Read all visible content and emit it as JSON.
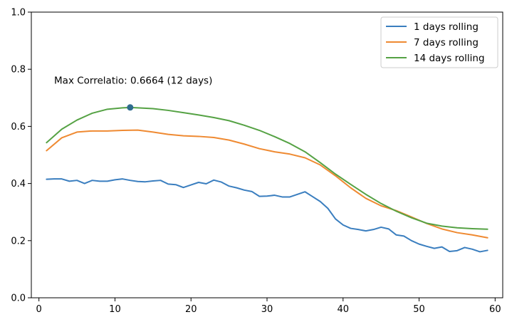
{
  "chart_data": {
    "type": "line",
    "xlim": [
      -1,
      61
    ],
    "ylim": [
      0.0,
      1.0
    ],
    "xticks": [
      0,
      10,
      20,
      30,
      40,
      50,
      60
    ],
    "yticks": [
      0.0,
      0.2,
      0.4,
      0.6,
      0.8,
      1.0
    ],
    "ytick_labels": [
      "0.0",
      "0.2",
      "0.4",
      "0.6",
      "0.8",
      "1.0"
    ],
    "legend_position": "top-right",
    "grid": false,
    "series": [
      {
        "name": "1 days rolling",
        "color": "#3a7ebf",
        "x": [
          1,
          2,
          3,
          4,
          5,
          6,
          7,
          8,
          9,
          10,
          11,
          12,
          13,
          14,
          15,
          16,
          17,
          18,
          19,
          20,
          21,
          22,
          23,
          24,
          25,
          26,
          27,
          28,
          29,
          30,
          31,
          32,
          33,
          34,
          35,
          36,
          37,
          38,
          39,
          40,
          41,
          42,
          43,
          44,
          45,
          46,
          47,
          48,
          49,
          50,
          51,
          52,
          53,
          54,
          55,
          56,
          57,
          58,
          59
        ],
        "values": [
          0.415,
          0.416,
          0.416,
          0.408,
          0.411,
          0.4,
          0.411,
          0.408,
          0.408,
          0.413,
          0.416,
          0.411,
          0.407,
          0.406,
          0.409,
          0.411,
          0.398,
          0.396,
          0.386,
          0.395,
          0.404,
          0.399,
          0.412,
          0.405,
          0.391,
          0.385,
          0.377,
          0.372,
          0.355,
          0.356,
          0.359,
          0.353,
          0.353,
          0.362,
          0.371,
          0.354,
          0.337,
          0.313,
          0.276,
          0.255,
          0.243,
          0.239,
          0.234,
          0.239,
          0.247,
          0.241,
          0.22,
          0.216,
          0.2,
          0.188,
          0.18,
          0.173,
          0.178,
          0.162,
          0.165,
          0.176,
          0.17,
          0.161,
          0.166
        ]
      },
      {
        "name": "7 days rolling",
        "color": "#ef8a32",
        "x": [
          1,
          3,
          5,
          7,
          9,
          11,
          13,
          15,
          17,
          19,
          21,
          23,
          25,
          27,
          29,
          31,
          33,
          35,
          37,
          39,
          41,
          43,
          45,
          47,
          49,
          51,
          53,
          55,
          57,
          59
        ],
        "values": [
          0.515,
          0.56,
          0.58,
          0.584,
          0.584,
          0.586,
          0.587,
          0.58,
          0.572,
          0.567,
          0.565,
          0.561,
          0.552,
          0.538,
          0.522,
          0.511,
          0.503,
          0.49,
          0.465,
          0.427,
          0.385,
          0.348,
          0.322,
          0.305,
          0.283,
          0.26,
          0.241,
          0.228,
          0.22,
          0.21
        ]
      },
      {
        "name": "14 days rolling",
        "color": "#55a244",
        "x": [
          1,
          3,
          5,
          7,
          9,
          11,
          12,
          13,
          15,
          17,
          19,
          21,
          23,
          25,
          27,
          29,
          31,
          33,
          35,
          37,
          39,
          41,
          43,
          45,
          47,
          49,
          51,
          53,
          55,
          57,
          59
        ],
        "values": [
          0.543,
          0.59,
          0.622,
          0.646,
          0.66,
          0.665,
          0.666,
          0.665,
          0.662,
          0.656,
          0.648,
          0.64,
          0.631,
          0.62,
          0.604,
          0.586,
          0.564,
          0.54,
          0.511,
          0.473,
          0.433,
          0.397,
          0.362,
          0.33,
          0.303,
          0.28,
          0.261,
          0.251,
          0.245,
          0.242,
          0.24
        ]
      }
    ],
    "annotations": [
      {
        "text": "Max Correlatio: 0.6664 (12 days)",
        "x": 2,
        "y": 0.762
      }
    ],
    "markers": [
      {
        "x": 12,
        "y": 0.6664,
        "color": "#2f6c8e"
      }
    ]
  }
}
